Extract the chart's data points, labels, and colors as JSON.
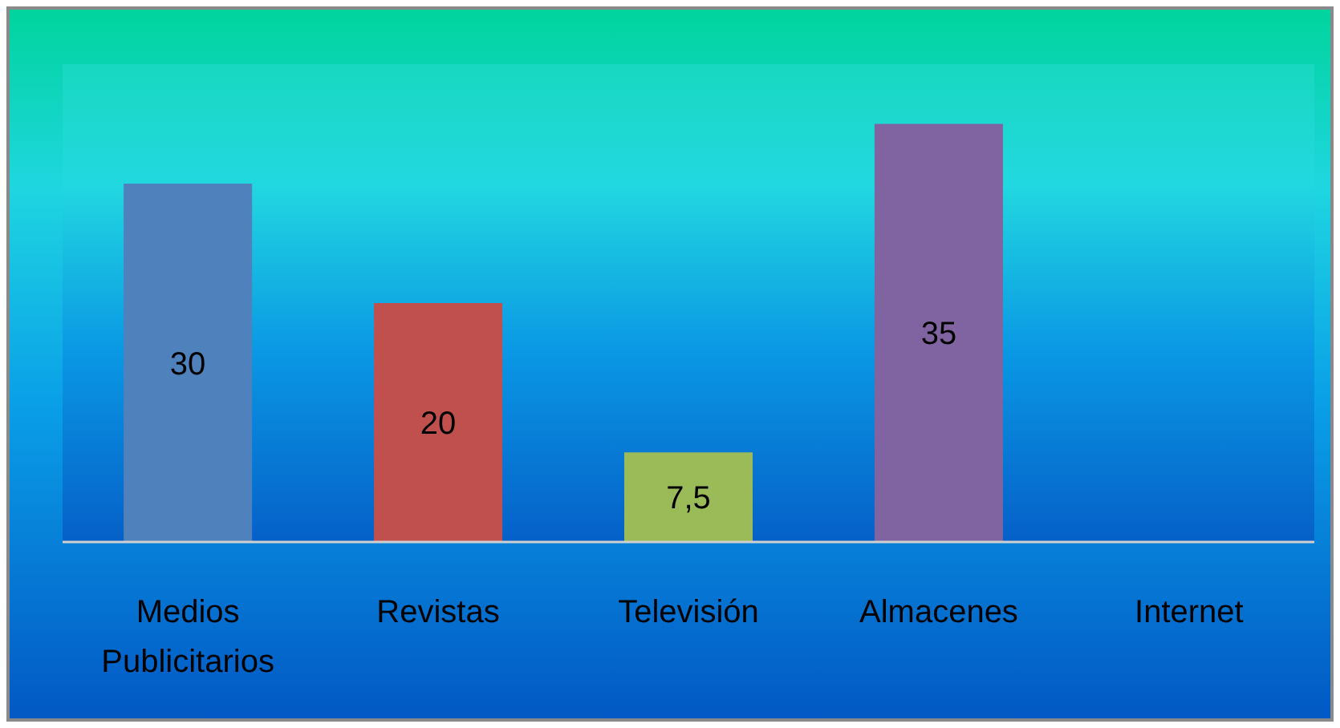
{
  "chart_data": {
    "type": "bar",
    "categories": [
      "Medios Publicitarios",
      "Revistas",
      "Televisión",
      "Almacenes",
      "Internet"
    ],
    "values": [
      30,
      20,
      7.5,
      35,
      null
    ],
    "colors": [
      "#4f81bd",
      "#c0504d",
      "#9bbb59",
      "#8064a2",
      null
    ],
    "value_labels": [
      "30",
      "20",
      "7,5",
      "35",
      null
    ],
    "ylim": [
      0,
      40
    ],
    "tick_labels": "x"
  }
}
